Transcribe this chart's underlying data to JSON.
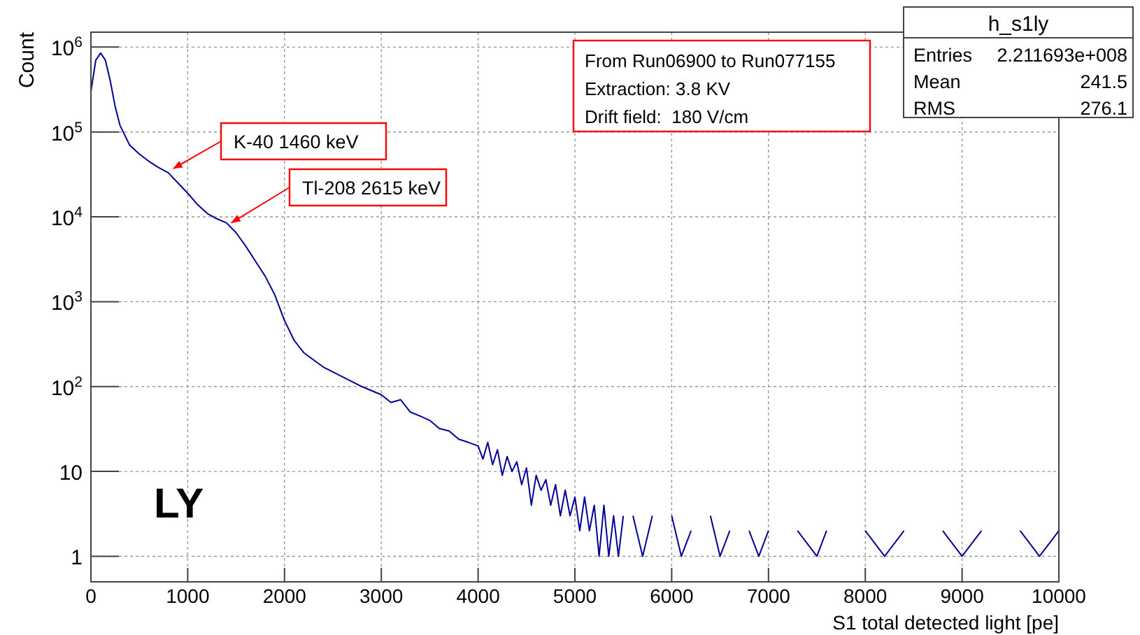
{
  "chart_data": {
    "type": "line",
    "ylabel": "Count",
    "xlabel": "S1 total detected light [pe]",
    "log": "y",
    "grid": true,
    "xlim": [
      0,
      10000
    ],
    "xticks": [
      0,
      1000,
      2000,
      3000,
      4000,
      5000,
      6000,
      7000,
      8000,
      9000,
      10000
    ],
    "ylim": [
      0.5,
      1500000
    ],
    "yticks": [
      1,
      10,
      {
        "value": 100,
        "label": "10$^{2}$"
      },
      {
        "value": 1000,
        "label": "10$^{3}$"
      },
      {
        "value": 10000,
        "label": "10$^{4}$"
      },
      {
        "value": 100000,
        "label": "10$^{5}$"
      },
      {
        "value": 1000000,
        "label": "10$^{6}$"
      }
    ],
    "annotations": [
      {
        "text": "K-40 1460 keV",
        "x": 850,
        "y": 37000
      },
      {
        "text": "Tl-208 2615 keV",
        "x": 1450,
        "y": 8500
      },
      "From Run06900 to Run077155",
      "Extraction: 3.8 KV",
      "Drift field:  180 V/cm",
      "LY",
      "h_s1ly",
      "Entries",
      "2.211693e+008",
      "Mean",
      "241.5",
      "RMS",
      "276.1"
    ],
    "series": [
      {
        "color": "#000099",
        "x": [
          0,
          50,
          100,
          150,
          200,
          250,
          300,
          400,
          500,
          600,
          700,
          800,
          900,
          1000,
          1100,
          1200,
          1300,
          1400,
          1500,
          1600,
          1700,
          1800,
          1900,
          2000,
          2100,
          2200,
          2400,
          2600,
          2800,
          3000,
          3100,
          3200,
          3300,
          3400,
          3500,
          3600,
          3700,
          3800,
          3900,
          4000,
          4050,
          4100,
          4150,
          4200,
          4250,
          4300,
          4350,
          4400,
          4450,
          4500,
          4550,
          4600,
          4650,
          4700,
          4750,
          4800,
          4850,
          4900,
          4950,
          5000,
          5050,
          5100,
          5150,
          5200,
          5250,
          5300,
          5350,
          5400,
          5450,
          5500,
          5550,
          5600,
          5700,
          5800,
          5900,
          6000,
          6100,
          6200,
          6300,
          6400,
          6500,
          6600,
          6700,
          6800,
          6900,
          7000,
          7200,
          7300,
          7500,
          7600,
          7800,
          8000,
          8200,
          8400,
          8600,
          8800,
          9000,
          9200,
          9400,
          9600,
          9800,
          10000
        ],
        "values": [
          300000,
          700000,
          850000,
          700000,
          400000,
          200000,
          120000,
          70000,
          55000,
          45000,
          38000,
          33000,
          25000,
          19000,
          14000,
          11000,
          9500,
          8500,
          6500,
          4500,
          3000,
          2000,
          1200,
          600,
          350,
          250,
          170,
          130,
          100,
          80,
          65,
          70,
          50,
          45,
          40,
          32,
          30,
          24,
          22,
          20,
          14,
          22,
          12,
          18,
          9,
          15,
          10,
          13,
          7,
          11,
          4,
          9,
          6,
          8,
          4,
          7,
          3,
          6,
          3,
          5,
          2,
          5,
          2,
          4,
          1,
          4,
          1,
          3,
          1,
          3,
          null,
          3,
          1,
          3,
          null,
          3,
          1,
          2,
          null,
          3,
          1,
          2,
          null,
          2,
          1,
          2,
          null,
          2,
          1,
          2,
          null,
          2,
          1,
          2,
          null,
          2,
          1,
          2,
          null,
          2,
          1,
          2
        ]
      }
    ]
  }
}
